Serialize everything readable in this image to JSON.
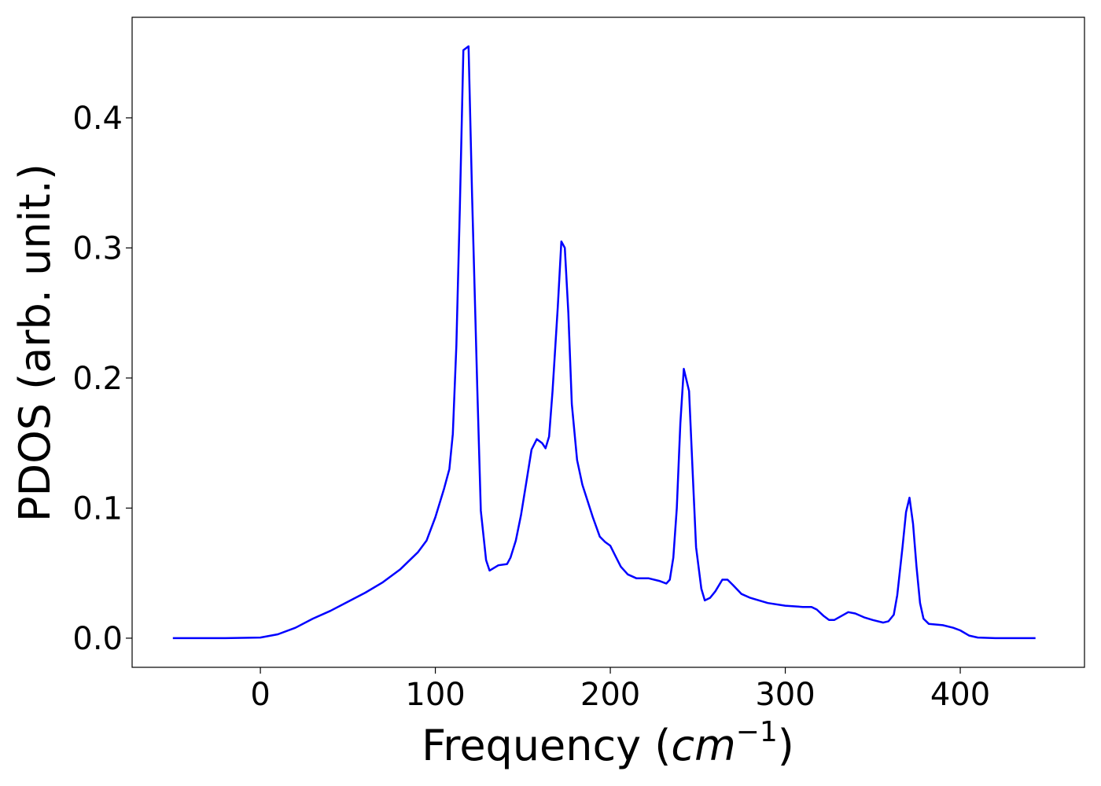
{
  "chart_data": {
    "type": "line",
    "xlabel": [
      "Frequency (",
      "cm",
      "−1",
      ")"
    ],
    "ylabel": "PDOS (arb. unit.)",
    "xlim": [
      -73.3,
      471
    ],
    "ylim": [
      -0.0224,
      0.4773
    ],
    "xticks": [
      0,
      100,
      200,
      300,
      400
    ],
    "yticks": [
      {
        "value": 0,
        "label": "0.0"
      },
      0.1,
      0.2,
      0.3,
      0.4
    ],
    "series": [
      {
        "color": "#0000ff",
        "x": [
          -50,
          -20,
          0,
          10,
          20,
          30,
          40,
          50,
          60,
          70,
          80,
          90,
          95,
          100,
          105,
          108,
          110,
          112,
          114,
          116,
          119,
          121,
          124,
          126,
          129,
          131,
          136,
          141,
          143,
          146,
          149,
          152,
          155,
          158,
          161,
          163,
          165,
          167,
          170,
          172,
          174,
          176,
          178,
          181,
          184,
          190,
          194,
          197,
          200,
          203,
          206,
          210,
          215,
          222,
          228,
          232,
          234,
          236,
          238,
          240,
          242,
          245,
          247,
          249,
          252,
          254,
          257,
          260,
          264,
          267,
          270,
          275,
          280,
          290,
          300,
          310,
          315,
          318,
          322,
          325,
          328,
          332,
          336,
          340,
          345,
          350,
          356,
          359,
          362,
          364,
          367,
          369,
          371,
          373,
          375,
          377,
          379,
          382,
          390,
          396,
          400,
          405,
          410,
          420,
          443
        ],
        "values": [
          0,
          0,
          0.0005,
          0.003,
          0.008,
          0.015,
          0.021,
          0.028,
          0.035,
          0.043,
          0.053,
          0.066,
          0.075,
          0.093,
          0.115,
          0.13,
          0.157,
          0.225,
          0.33,
          0.452,
          0.455,
          0.34,
          0.19,
          0.098,
          0.06,
          0.052,
          0.056,
          0.057,
          0.062,
          0.075,
          0.095,
          0.12,
          0.145,
          0.153,
          0.15,
          0.146,
          0.155,
          0.19,
          0.255,
          0.305,
          0.3,
          0.25,
          0.18,
          0.137,
          0.118,
          0.093,
          0.078,
          0.074,
          0.071,
          0.063,
          0.055,
          0.049,
          0.046,
          0.046,
          0.044,
          0.042,
          0.045,
          0.062,
          0.1,
          0.165,
          0.207,
          0.19,
          0.13,
          0.07,
          0.038,
          0.029,
          0.031,
          0.036,
          0.045,
          0.045,
          0.041,
          0.034,
          0.031,
          0.027,
          0.025,
          0.024,
          0.024,
          0.022,
          0.017,
          0.014,
          0.014,
          0.017,
          0.02,
          0.019,
          0.016,
          0.014,
          0.012,
          0.013,
          0.018,
          0.033,
          0.07,
          0.097,
          0.108,
          0.088,
          0.055,
          0.027,
          0.015,
          0.011,
          0.01,
          0.008,
          0.006,
          0.002,
          0.0005,
          0,
          0
        ]
      }
    ]
  }
}
